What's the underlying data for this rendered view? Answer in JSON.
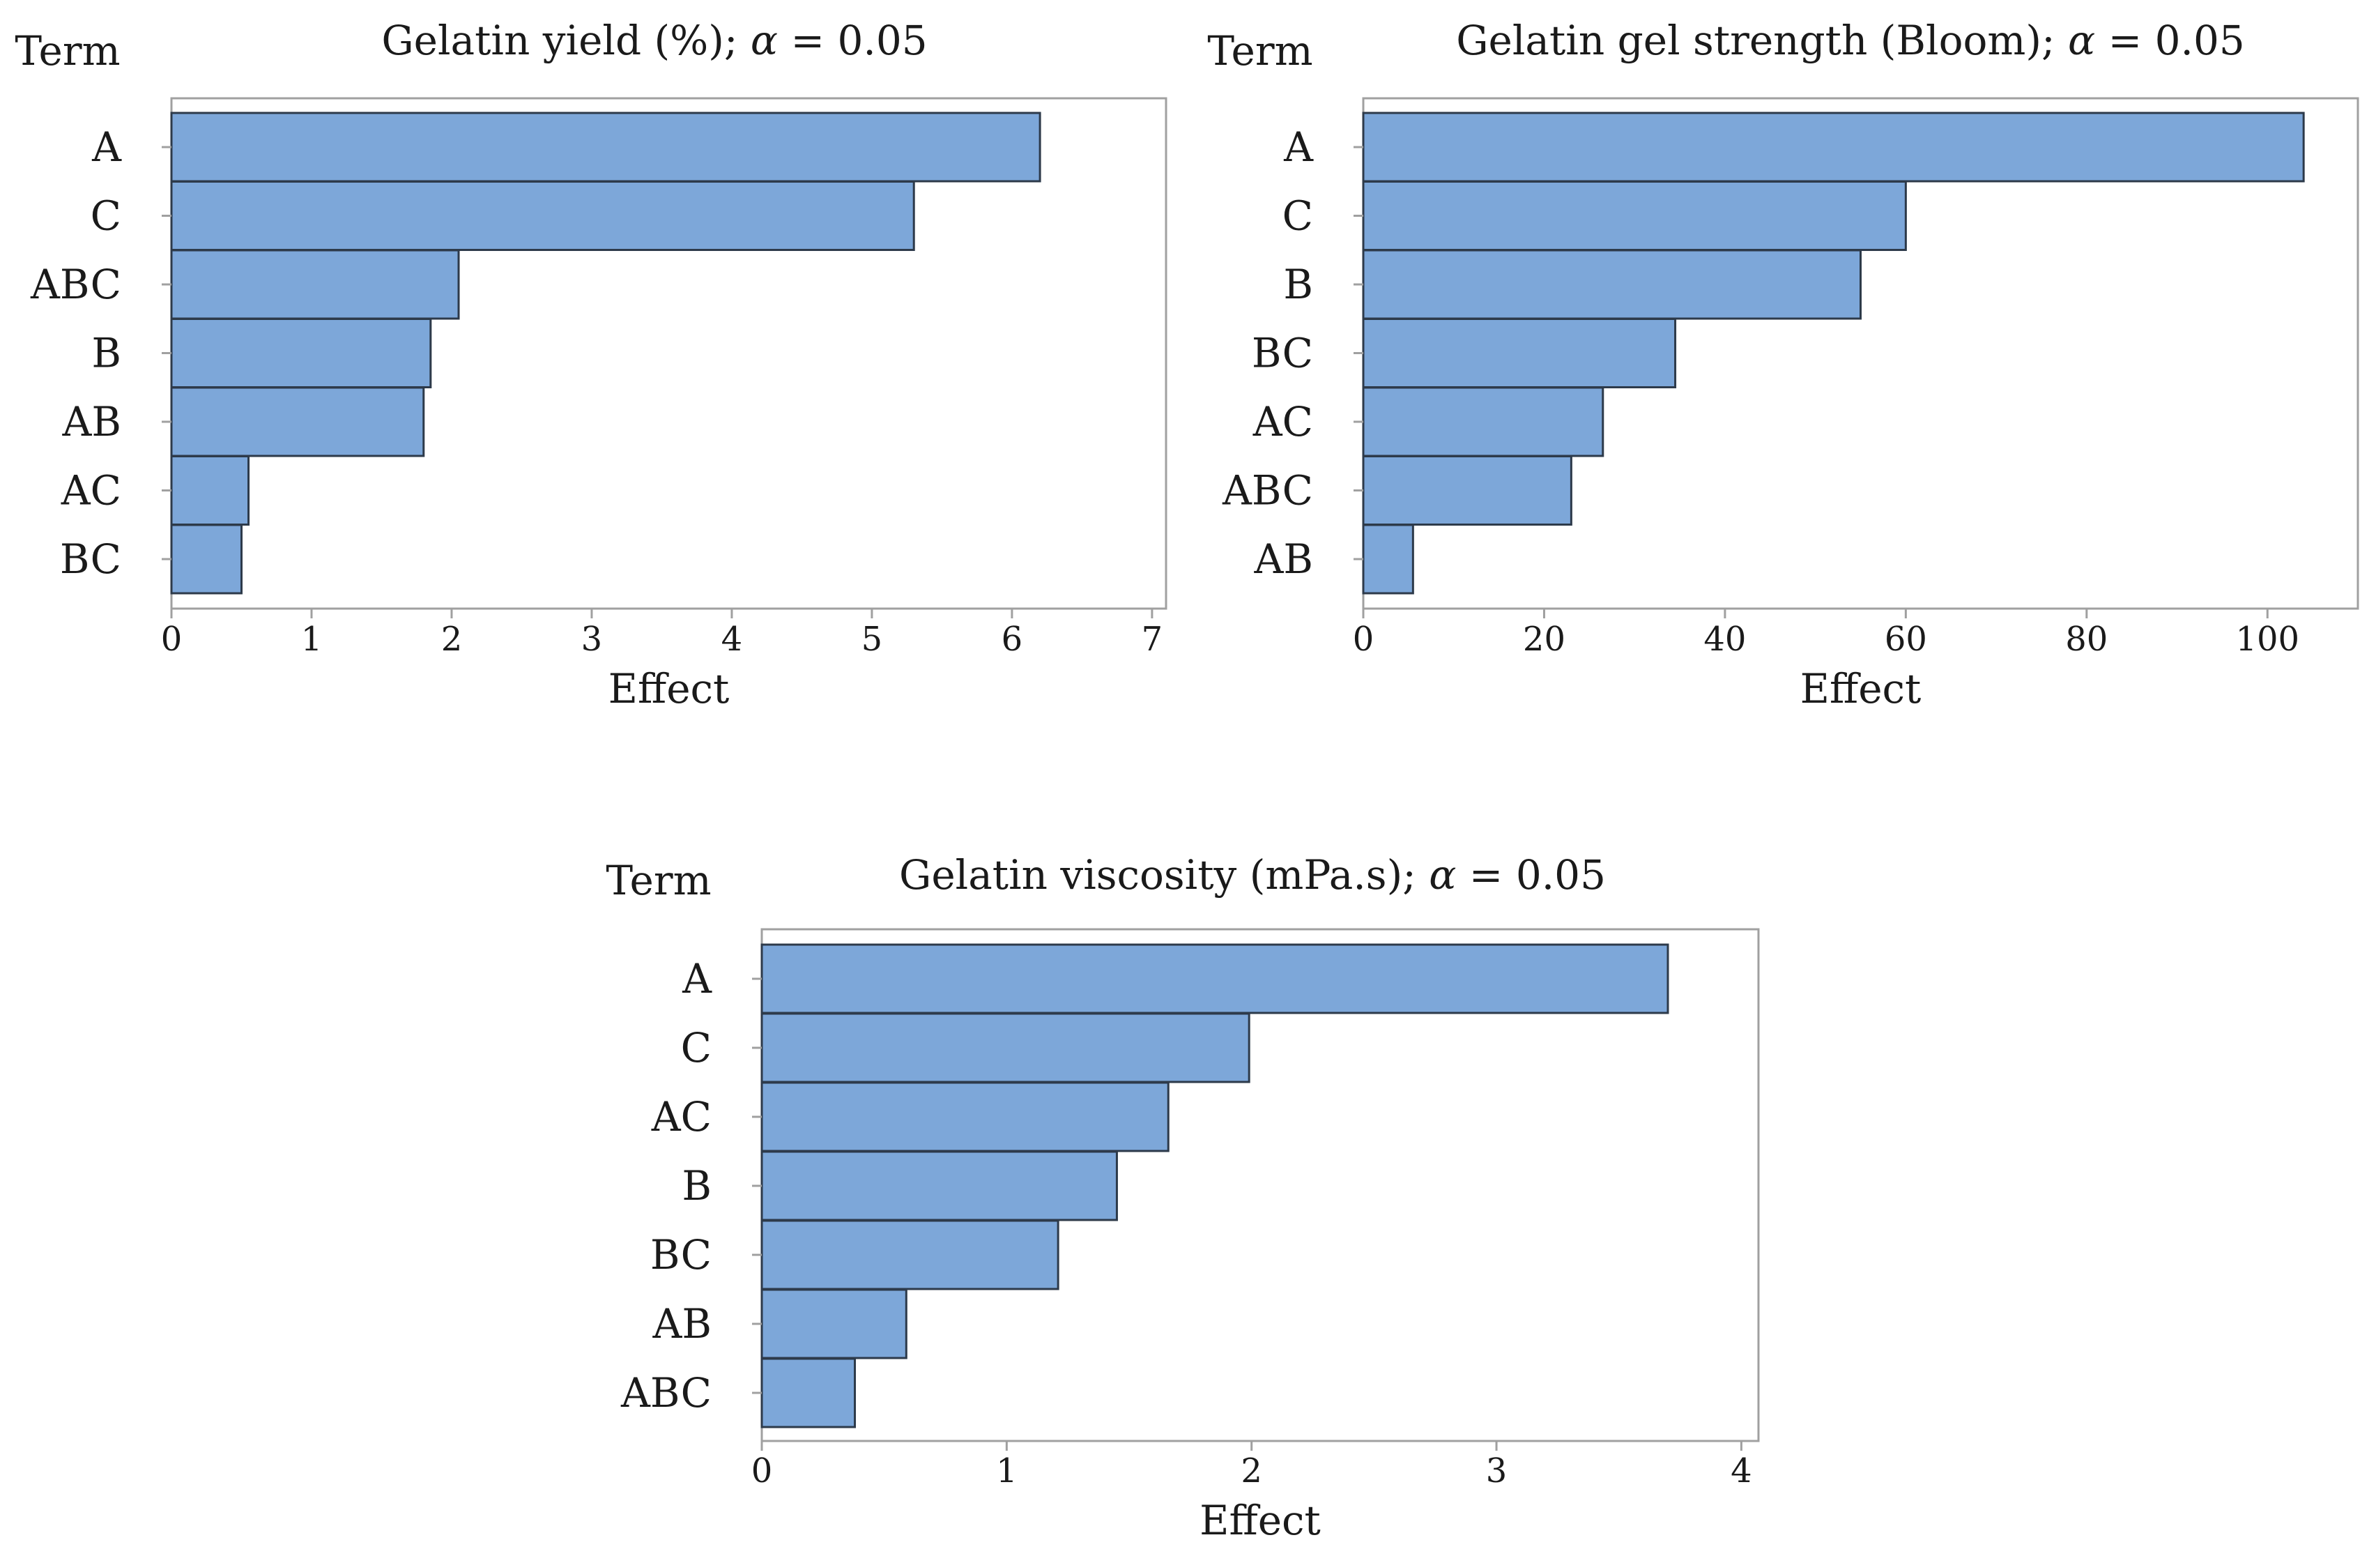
{
  "chart_data": [
    {
      "type": "bar",
      "orientation": "horizontal",
      "title_main": "Gelatin yield (%); ",
      "title_alpha_symbol": "α",
      "title_alpha_value": " = 0.05",
      "title": "Gelatin yield (%); α = 0.05",
      "term_label": "Term",
      "xlabel": "Effect",
      "categories": [
        "A",
        "C",
        "ABC",
        "B",
        "AB",
        "AC",
        "BC"
      ],
      "values": [
        6.2,
        5.3,
        2.05,
        1.85,
        1.8,
        0.55,
        0.5
      ],
      "xlim": [
        0,
        7.1
      ],
      "xticks": [
        "0",
        "1",
        "2",
        "3",
        "4",
        "5",
        "6",
        "7"
      ],
      "xtick_values": [
        0,
        1,
        2,
        3,
        4,
        5,
        6,
        7
      ],
      "bar_color": "#7da7d9",
      "bar_edge_color": "#2d3a4a",
      "frame_color": "#a0a0a0"
    },
    {
      "type": "bar",
      "orientation": "horizontal",
      "title_main": "Gelatin gel strength (Bloom); ",
      "title_alpha_symbol": "α",
      "title_alpha_value": " = 0.05",
      "title": "Gelatin gel strength (Bloom); α = 0.05",
      "term_label": "Term",
      "xlabel": "Effect",
      "categories": [
        "A",
        "C",
        "B",
        "BC",
        "AC",
        "ABC",
        "AB"
      ],
      "values": [
        104,
        60,
        55,
        34.5,
        26.5,
        23,
        5.5
      ],
      "xlim": [
        0,
        110
      ],
      "xticks": [
        "0",
        "20",
        "40",
        "60",
        "80",
        "100"
      ],
      "xtick_values": [
        0,
        20,
        40,
        60,
        80,
        100
      ],
      "bar_color": "#7da7d9",
      "bar_edge_color": "#2d3a4a",
      "frame_color": "#a0a0a0"
    },
    {
      "type": "bar",
      "orientation": "horizontal",
      "title_main": "Gelatin viscosity (mPa.s); ",
      "title_alpha_symbol": "α",
      "title_alpha_value": " = 0.05",
      "title": "Gelatin viscosity (mPa.s); α = 0.05",
      "term_label": "Term",
      "xlabel": "Effect",
      "categories": [
        "A",
        "C",
        "AC",
        "B",
        "BC",
        "AB",
        "ABC"
      ],
      "values": [
        3.7,
        1.99,
        1.66,
        1.45,
        1.21,
        0.59,
        0.38
      ],
      "xlim": [
        0,
        4.07
      ],
      "xticks": [
        "0",
        "1",
        "2",
        "3",
        "4"
      ],
      "xtick_values": [
        0,
        1,
        2,
        3,
        4
      ],
      "bar_color": "#7da7d9",
      "bar_edge_color": "#2d3a4a",
      "frame_color": "#a0a0a0"
    }
  ]
}
